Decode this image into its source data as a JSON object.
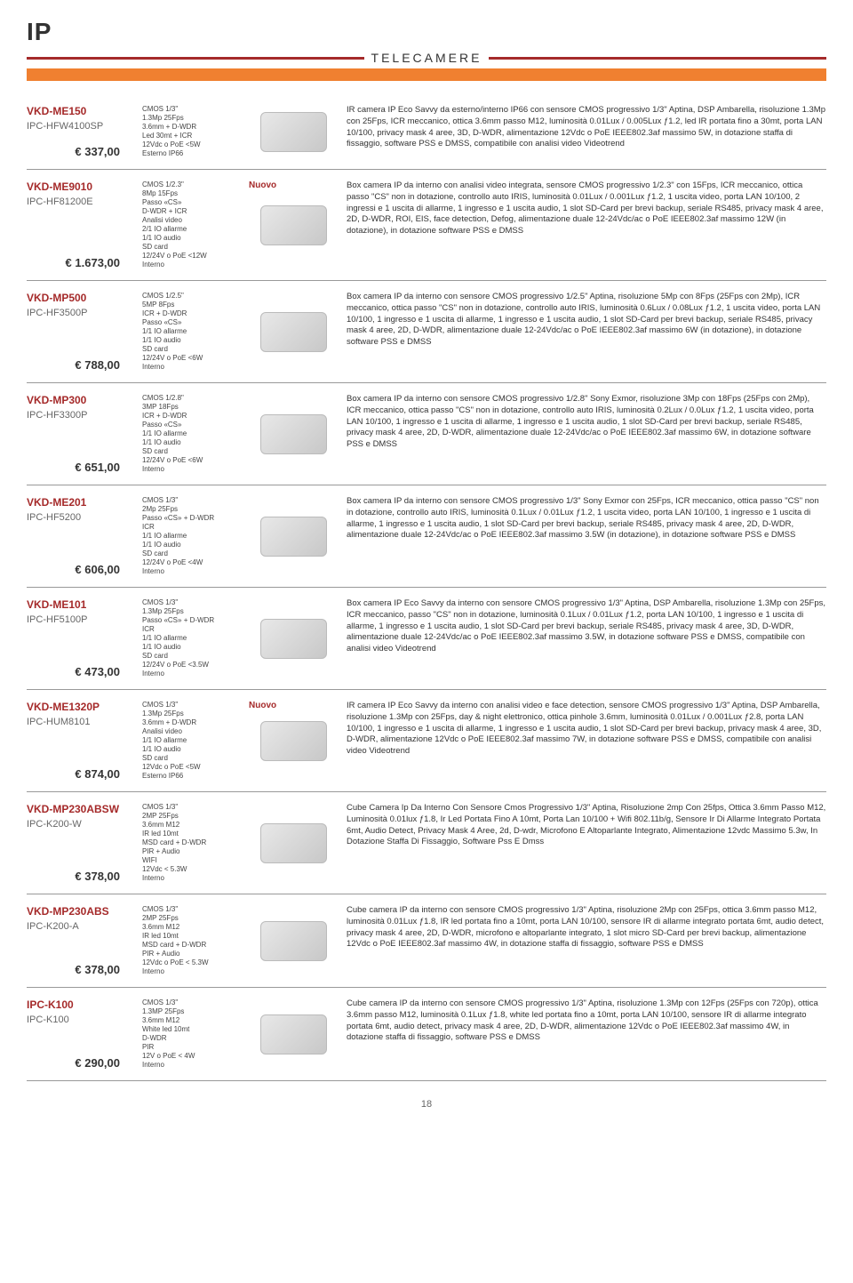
{
  "header": {
    "ip": "IP",
    "category": "TELECAMERE"
  },
  "page_number": "18",
  "products": [
    {
      "model": "VKD-ME150",
      "sub": "IPC-HFW4100SP",
      "price": "€ 337,00",
      "specs": "CMOS 1/3\"\n1.3Mp 25Fps\n3.6mm + D-WDR\nLed 30mt + ICR\n12Vdc o PoE <5W\nEsterno IP66",
      "nuovo": false,
      "desc": "IR camera IP Eco Savvy da esterno/interno IP66 con sensore CMOS progressivo 1/3\" Aptina, DSP Ambarella, risoluzione 1.3Mp con 25Fps, ICR meccanico, ottica 3.6mm passo M12, luminosità 0.01Lux / 0.005Lux ƒ1.2, led IR portata fino a 30mt, porta LAN 10/100, privacy mask 4 aree, 3D, D-WDR, alimentazione 12Vdc o PoE IEEE802.3af massimo 5W, in dotazione staffa di fissaggio, software PSS e DMSS, compatibile con analisi video Videotrend"
    },
    {
      "model": "VKD-ME9010",
      "sub": "IPC-HF81200E",
      "price": "€ 1.673,00",
      "specs": "CMOS 1/2.3\"\n8Mp 15Fps\nPasso «CS»\nD-WDR + ICR\nAnalisi video\n2/1 IO allarme\n1/1 IO audio\nSD card\n12/24V o PoE <12W\nInterno",
      "nuovo": true,
      "desc": "Box camera IP da interno con analisi video integrata, sensore CMOS progressivo 1/2.3\" con 15Fps, ICR meccanico, ottica passo \"CS\" non in dotazione, controllo auto IRIS, luminosità 0.01Lux / 0.001Lux ƒ1.2, 1 uscita video, porta LAN 10/100, 2 ingressi e 1 uscita di allarme, 1 ingresso e 1 uscita audio, 1 slot SD-Card per brevi backup, seriale RS485, privacy mask 4 aree, 2D, D-WDR, ROI, EIS, face detection, Defog, alimentazione duale 12-24Vdc/ac o PoE IEEE802.3af massimo 12W (in dotazione), in dotazione software PSS e DMSS"
    },
    {
      "model": "VKD-MP500",
      "sub": "IPC-HF3500P",
      "price": "€ 788,00",
      "specs": "CMOS 1/2.5\"\n5MP 8Fps\nICR + D-WDR\nPasso «CS»\n1/1 IO allarme\n1/1 IO audio\nSD card\n12/24V o PoE <6W\nInterno",
      "nuovo": false,
      "desc": "Box camera IP da interno con sensore CMOS progressivo 1/2.5\" Aptina, risoluzione 5Mp con 8Fps (25Fps con 2Mp), ICR meccanico, ottica passo \"CS\" non in dotazione, controllo auto IRIS, luminosità 0.6Lux / 0.08Lux ƒ1.2, 1 uscita video, porta LAN 10/100, 1 ingresso e 1 uscita di allarme, 1 ingresso e 1 uscita audio, 1 slot SD-Card per brevi backup, seriale RS485, privacy mask 4 aree, 2D, D-WDR, alimentazione duale 12-24Vdc/ac o PoE IEEE802.3af massimo 6W (in dotazione), in dotazione software PSS e DMSS"
    },
    {
      "model": "VKD-MP300",
      "sub": "IPC-HF3300P",
      "price": "€ 651,00",
      "specs": "CMOS 1/2.8\"\n3MP 18Fps\nICR + D-WDR\nPasso «CS»\n1/1 IO allarme\n1/1 IO audio\nSD card\n12/24V o PoE <6W\nInterno",
      "nuovo": false,
      "desc": "Box camera IP da interno con sensore CMOS progressivo 1/2.8\" Sony Exmor, risoluzione 3Mp con 18Fps (25Fps con 2Mp), ICR meccanico, ottica passo \"CS\" non in dotazione, controllo auto IRIS, luminosità 0.2Lux / 0.0Lux ƒ1.2, 1 uscita video, porta LAN 10/100, 1 ingresso e 1 uscita di allarme, 1 ingresso e 1 uscita audio, 1 slot SD-Card per brevi backup, seriale RS485, privacy mask 4 aree, 2D, D-WDR, alimentazione duale 12-24Vdc/ac o PoE IEEE802.3af massimo 6W, in dotazione software PSS e DMSS"
    },
    {
      "model": "VKD-ME201",
      "sub": "IPC-HF5200",
      "price": "€ 606,00",
      "specs": "CMOS 1/3\"\n2Mp 25Fps\nPasso «CS» + D-WDR\nICR\n1/1 IO allarme\n1/1 IO audio\nSD card\n12/24V o PoE <4W\nInterno",
      "nuovo": false,
      "desc": "Box camera IP da interno con sensore CMOS progressivo 1/3\" Sony Exmor con 25Fps, ICR meccanico, ottica passo \"CS\" non in dotazione, controllo auto IRIS, luminosità 0.1Lux / 0.01Lux ƒ1.2, 1 uscita video, porta LAN 10/100, 1 ingresso e 1 uscita di allarme, 1 ingresso e 1 uscita audio, 1 slot SD-Card per brevi backup, seriale RS485, privacy mask 4 aree, 2D, D-WDR, alimentazione duale 12-24Vdc/ac o PoE IEEE802.3af massimo 3.5W (in dotazione), in dotazione software PSS e DMSS"
    },
    {
      "model": "VKD-ME101",
      "sub": "IPC-HF5100P",
      "price": "€ 473,00",
      "specs": "CMOS 1/3\"\n1.3Mp 25Fps\nPasso «CS» + D-WDR\nICR\n1/1 IO allarme\n1/1 IO audio\nSD card\n12/24V o PoE <3.5W\nInterno",
      "nuovo": false,
      "desc": "Box camera IP Eco Savvy da interno con sensore CMOS progressivo 1/3\" Aptina, DSP Ambarella, risoluzione 1.3Mp con 25Fps, ICR meccanico, passo \"CS\" non in dotazione, luminosità 0.1Lux / 0.01Lux ƒ1.2, porta LAN 10/100, 1 ingresso e 1 uscita di allarme, 1 ingresso e 1 uscita audio, 1 slot SD-Card per brevi backup, seriale RS485, privacy mask 4 aree, 3D, D-WDR, alimentazione duale 12-24Vdc/ac o PoE IEEE802.3af massimo 3.5W, in dotazione software PSS e DMSS, compatibile con analisi video Videotrend"
    },
    {
      "model": "VKD-ME1320P",
      "sub": "IPC-HUM8101",
      "price": "€ 874,00",
      "specs": "CMOS 1/3\"\n1.3Mp 25Fps\n3.6mm + D-WDR\nAnalisi video\n1/1 IO allarme\n1/1 IO audio\nSD card\n12Vdc o PoE <5W\nEsterno IP66",
      "nuovo": true,
      "desc": "IR camera IP Eco Savvy da interno con analisi video e face detection, sensore CMOS progressivo 1/3\" Aptina, DSP Ambarella, risoluzione 1.3Mp con 25Fps, day & night elettronico, ottica pinhole 3.6mm, luminosità 0.01Lux / 0.001Lux ƒ2.8, porta LAN 10/100, 1 ingresso e 1 uscita di allarme, 1 ingresso e 1 uscita audio, 1 slot SD-Card per brevi backup, privacy mask 4 aree, 3D, D-WDR, alimentazione 12Vdc o PoE IEEE802.3af massimo 7W, in dotazione software PSS e DMSS, compatibile con analisi video Videotrend"
    },
    {
      "model": "VKD-MP230ABSW",
      "sub": "IPC-K200-W",
      "price": "€ 378,00",
      "specs": "CMOS 1/3\"\n2MP 25Fps\n3.6mm M12\nIR led 10mt\nMSD card + D-WDR\nPIR + Audio\nWIFI\n12Vdc < 5.3W\nInterno",
      "nuovo": false,
      "desc": "Cube Camera Ip Da Interno Con Sensore Cmos Progressivo 1/3\" Aptina, Risoluzione 2mp Con 25fps, Ottica 3.6mm Passo M12, Luminosità 0.01lux ƒ1.8, Ir Led Portata Fino A 10mt, Porta Lan 10/100 + Wifi 802.11b/g, Sensore Ir Di Allarme Integrato Portata 6mt, Audio Detect, Privacy Mask 4 Aree, 2d, D-wdr, Microfono E Altoparlante Integrato, Alimentazione 12vdc Massimo 5.3w, In Dotazione Staffa Di Fissaggio, Software Pss E Dmss"
    },
    {
      "model": "VKD-MP230ABS",
      "sub": "IPC-K200-A",
      "price": "€ 378,00",
      "specs": "CMOS 1/3\"\n2MP 25Fps\n3.6mm M12\nIR led 10mt\nMSD card + D-WDR\nPIR + Audio\n12Vdc o PoE < 5.3W\nInterno",
      "nuovo": false,
      "desc": "Cube camera IP da interno con sensore CMOS progressivo 1/3\" Aptina, risoluzione 2Mp con 25Fps, ottica 3.6mm passo M12, luminosità 0.01Lux ƒ1.8, IR led portata fino a 10mt, porta LAN 10/100, sensore IR di allarme integrato portata 6mt, audio detect, privacy mask 4 aree, 2D, D-WDR, microfono e altoparlante integrato, 1 slot micro SD-Card per brevi backup, alimentazione 12Vdc o PoE IEEE802.3af massimo 4W, in dotazione staffa di fissaggio, software PSS e DMSS"
    },
    {
      "model": "IPC-K100",
      "sub": "IPC-K100",
      "price": "€ 290,00",
      "specs": "CMOS 1/3\"\n1.3MP 25Fps\n3.6mm M12\nWhite led 10mt\nD-WDR\nPIR\n12V o PoE < 4W\nInterno",
      "nuovo": false,
      "desc": "Cube camera IP da interno con sensore CMOS progressivo 1/3\" Aptina, risoluzione 1.3Mp con 12Fps (25Fps con 720p), ottica 3.6mm passo M12, luminosità 0.1Lux ƒ1.8, white led portata fino a 10mt, porta LAN 10/100, sensore IR di allarme integrato portata 6mt, audio detect, privacy mask 4 aree, 2D, D-WDR, alimentazione 12Vdc o PoE IEEE802.3af massimo 4W, in dotazione staffa di fissaggio, software PSS e DMSS"
    }
  ],
  "labels": {
    "nuovo": "Nuovo"
  }
}
